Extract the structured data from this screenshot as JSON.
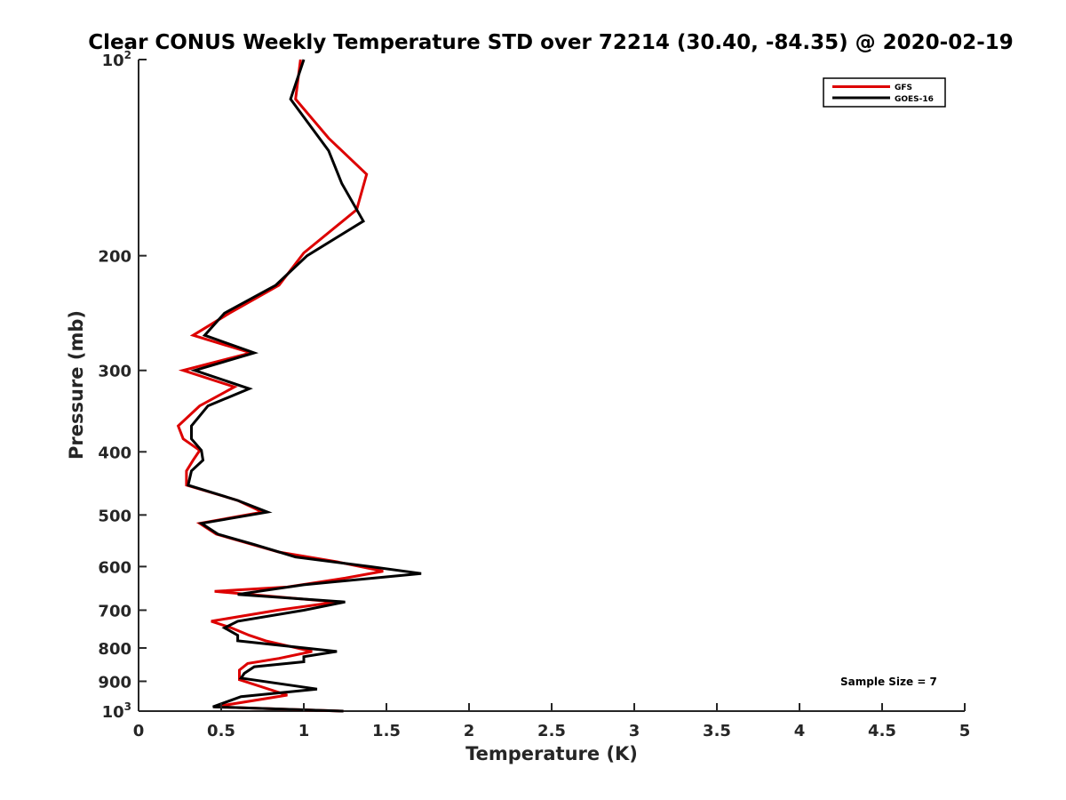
{
  "chart_data": {
    "type": "line",
    "title": "Clear CONUS Weekly Temperature STD over 72214 (30.40, -84.35) @ 2020-02-19",
    "xlabel": "Temperature (K)",
    "ylabel": "Pressure (mb)",
    "xlim": [
      0,
      5
    ],
    "ylim": [
      100,
      1000
    ],
    "y_scale": "log",
    "y_reversed": true,
    "x_ticks": [
      {
        "value": 0,
        "label": "0"
      },
      {
        "value": 0.5,
        "label": "0.5"
      },
      {
        "value": 1,
        "label": "1"
      },
      {
        "value": 1.5,
        "label": "1.5"
      },
      {
        "value": 2,
        "label": "2"
      },
      {
        "value": 2.5,
        "label": "2.5"
      },
      {
        "value": 3,
        "label": "3"
      },
      {
        "value": 3.5,
        "label": "3.5"
      },
      {
        "value": 4,
        "label": "4"
      },
      {
        "value": 4.5,
        "label": "4.5"
      },
      {
        "value": 5,
        "label": "5"
      }
    ],
    "y_ticks": [
      {
        "value": 100,
        "base": "10",
        "exp": "2"
      },
      {
        "value": 200,
        "label": "200"
      },
      {
        "value": 300,
        "label": "300"
      },
      {
        "value": 400,
        "label": "400"
      },
      {
        "value": 500,
        "label": "500"
      },
      {
        "value": 600,
        "label": "600"
      },
      {
        "value": 700,
        "label": "700"
      },
      {
        "value": 800,
        "label": "800"
      },
      {
        "value": 900,
        "label": "900"
      },
      {
        "value": 1000,
        "base": "10",
        "exp": "3"
      }
    ],
    "grid": false,
    "legend_position": "top-right",
    "annotation": "Sample Size = 7",
    "series": [
      {
        "name": "GFS",
        "color": "#dd0000",
        "points": [
          [
            0.98,
            100
          ],
          [
            0.95,
            115
          ],
          [
            1.15,
            132
          ],
          [
            1.38,
            150
          ],
          [
            1.32,
            170
          ],
          [
            1.0,
            198
          ],
          [
            0.85,
            222
          ],
          [
            0.55,
            245
          ],
          [
            0.33,
            265
          ],
          [
            0.68,
            282
          ],
          [
            0.27,
            300
          ],
          [
            0.58,
            318
          ],
          [
            0.37,
            340
          ],
          [
            0.24,
            365
          ],
          [
            0.27,
            382
          ],
          [
            0.37,
            398
          ],
          [
            0.33,
            412
          ],
          [
            0.29,
            428
          ],
          [
            0.29,
            450
          ],
          [
            0.6,
            475
          ],
          [
            0.75,
            495
          ],
          [
            0.37,
            515
          ],
          [
            0.47,
            535
          ],
          [
            0.85,
            570
          ],
          [
            1.2,
            590
          ],
          [
            1.48,
            610
          ],
          [
            1.25,
            625
          ],
          [
            0.9,
            645
          ],
          [
            0.46,
            655
          ],
          [
            1.2,
            680
          ],
          [
            0.84,
            700
          ],
          [
            0.44,
            728
          ],
          [
            0.56,
            745
          ],
          [
            0.67,
            765
          ],
          [
            0.77,
            780
          ],
          [
            1.05,
            810
          ],
          [
            0.85,
            830
          ],
          [
            0.66,
            845
          ],
          [
            0.61,
            865
          ],
          [
            0.61,
            895
          ],
          [
            0.9,
            945
          ],
          [
            0.46,
            985
          ],
          [
            1.24,
            1000
          ]
        ]
      },
      {
        "name": "GOES-16",
        "color": "#000000",
        "points": [
          [
            1.0,
            100
          ],
          [
            0.92,
            115
          ],
          [
            1.15,
            138
          ],
          [
            1.23,
            155
          ],
          [
            1.36,
            177
          ],
          [
            1.02,
            200
          ],
          [
            0.83,
            222
          ],
          [
            0.52,
            245
          ],
          [
            0.4,
            265
          ],
          [
            0.7,
            282
          ],
          [
            0.34,
            300
          ],
          [
            0.67,
            320
          ],
          [
            0.42,
            340
          ],
          [
            0.32,
            365
          ],
          [
            0.32,
            382
          ],
          [
            0.38,
            398
          ],
          [
            0.39,
            412
          ],
          [
            0.32,
            428
          ],
          [
            0.3,
            450
          ],
          [
            0.6,
            475
          ],
          [
            0.78,
            495
          ],
          [
            0.38,
            515
          ],
          [
            0.48,
            535
          ],
          [
            0.7,
            555
          ],
          [
            0.95,
            580
          ],
          [
            1.4,
            600
          ],
          [
            1.71,
            615
          ],
          [
            1.0,
            640
          ],
          [
            0.6,
            662
          ],
          [
            1.25,
            680
          ],
          [
            1.0,
            700
          ],
          [
            0.6,
            728
          ],
          [
            0.52,
            745
          ],
          [
            0.6,
            765
          ],
          [
            0.6,
            780
          ],
          [
            1.2,
            810
          ],
          [
            1.0,
            825
          ],
          [
            1.0,
            840
          ],
          [
            0.7,
            855
          ],
          [
            0.64,
            875
          ],
          [
            0.62,
            890
          ],
          [
            1.08,
            925
          ],
          [
            0.62,
            950
          ],
          [
            0.45,
            985
          ],
          [
            1.24,
            1000
          ]
        ]
      }
    ]
  }
}
